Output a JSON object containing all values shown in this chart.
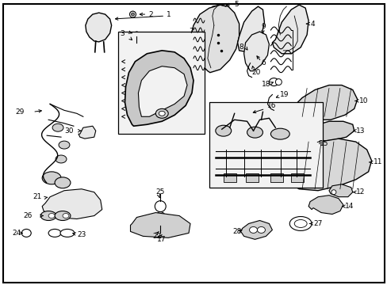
{
  "background_color": "#ffffff",
  "border_color": "#000000",
  "fig_width": 4.89,
  "fig_height": 3.6,
  "dpi": 100,
  "font_size": 6.5,
  "line_color": "#000000",
  "fill_light": "#e8e8e8",
  "fill_mid": "#d0d0d0",
  "fill_dark": "#b0b0b0"
}
